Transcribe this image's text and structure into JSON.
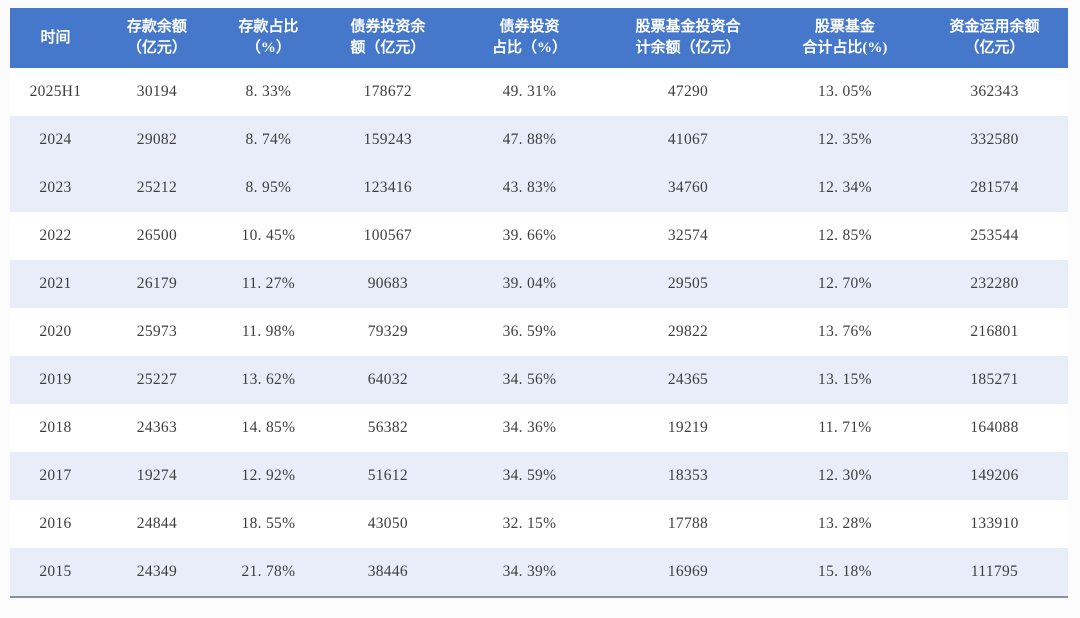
{
  "chart_data": {
    "type": "table",
    "title": "",
    "columns": [
      "时间",
      "存款余额\n（亿元）",
      "存款占比\n（%）",
      "债券投资余\n额（亿元）",
      "债券投资\n占比（%）",
      "股票基金投资合\n计余额（亿元）",
      "股票基金\n合计占比(%)",
      "资金运用余额\n（亿元）"
    ],
    "rows": [
      [
        "2025H1",
        "30194",
        "8. 33%",
        "178672",
        "49. 31%",
        "47290",
        "13. 05%",
        "362343"
      ],
      [
        "2024",
        "29082",
        "8. 74%",
        "159243",
        "47. 88%",
        "41067",
        "12. 35%",
        "332580"
      ],
      [
        "2023",
        "25212",
        "8. 95%",
        "123416",
        "43. 83%",
        "34760",
        "12. 34%",
        "281574"
      ],
      [
        "2022",
        "26500",
        "10. 45%",
        "100567",
        "39. 66%",
        "32574",
        "12. 85%",
        "253544"
      ],
      [
        "2021",
        "26179",
        "11. 27%",
        "90683",
        "39. 04%",
        "29505",
        "12. 70%",
        "232280"
      ],
      [
        "2020",
        "25973",
        "11. 98%",
        "79329",
        "36. 59%",
        "29822",
        "13. 76%",
        "216801"
      ],
      [
        "2019",
        "25227",
        "13. 62%",
        "64032",
        "34. 56%",
        "24365",
        "13. 15%",
        "185271"
      ],
      [
        "2018",
        "24363",
        "14. 85%",
        "56382",
        "34. 36%",
        "19219",
        "11. 71%",
        "164088"
      ],
      [
        "2017",
        "19274",
        "12. 92%",
        "51612",
        "34. 59%",
        "18353",
        "12. 30%",
        "149206"
      ],
      [
        "2016",
        "24844",
        "18. 55%",
        "43050",
        "32. 15%",
        "17788",
        "13. 28%",
        "133910"
      ],
      [
        "2015",
        "24349",
        "21. 78%",
        "38446",
        "34. 39%",
        "16969",
        "15. 18%",
        "111795"
      ]
    ],
    "shaded_row_indices": [
      1,
      2,
      4,
      6,
      8,
      10
    ],
    "colors": {
      "header_bg": "#4577CB",
      "header_text": "#ffffff",
      "row_bg": "#ffffff",
      "row_alt_bg": "#E9EDF9",
      "body_text": "#3e3e3e",
      "bottom_border": "#8b919a"
    }
  }
}
